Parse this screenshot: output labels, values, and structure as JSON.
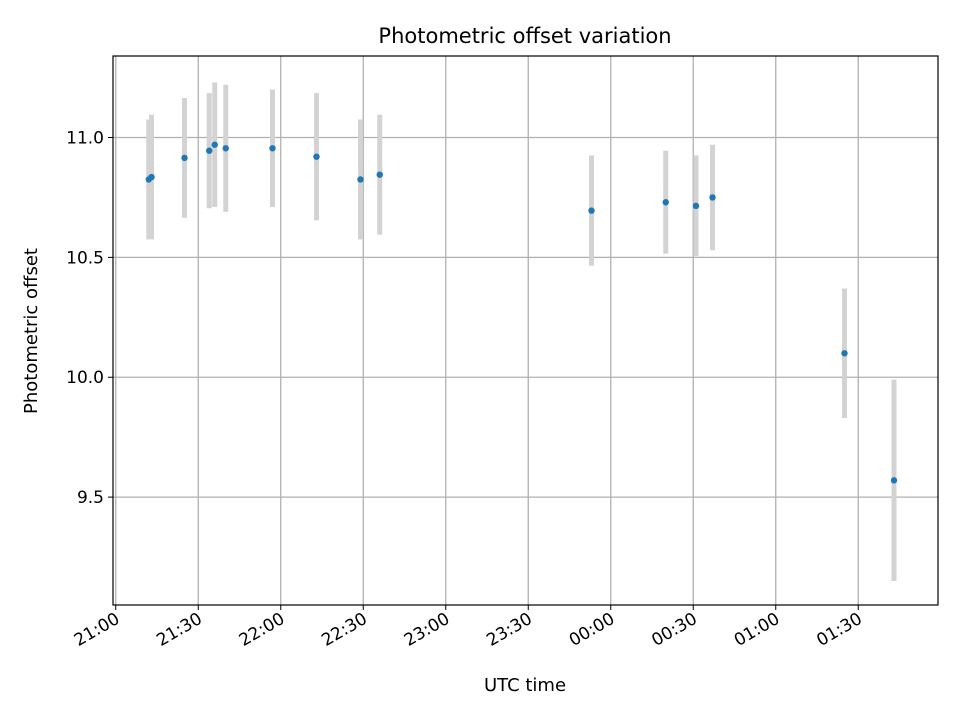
{
  "chart_data": {
    "type": "scatter",
    "title": "Photometric offset variation",
    "xlabel": "UTC time",
    "ylabel": "Photometric offset",
    "x_tick_labels": [
      "21:00",
      "21:30",
      "22:00",
      "22:30",
      "23:00",
      "23:30",
      "00:00",
      "00:30",
      "01:00",
      "01:30"
    ],
    "x_tick_times": [
      "21:00",
      "21:30",
      "22:00",
      "22:30",
      "23:00",
      "23:30",
      "00:00",
      "00:30",
      "01:00",
      "01:30"
    ],
    "xlim": [
      "20:59",
      "01:59"
    ],
    "y_tick_labels": [
      "9.5",
      "10.0",
      "10.5",
      "11.0"
    ],
    "y_tick_values": [
      9.5,
      10.0,
      10.5,
      11.0
    ],
    "ylim": [
      9.05,
      11.34
    ],
    "grid": true,
    "colors": {
      "points": "#1f77b4",
      "errorbars": "#d3d3d3",
      "grid": "#b0b0b0"
    },
    "points": [
      {
        "time": "21:12",
        "y": 10.825,
        "err": 0.25
      },
      {
        "time": "21:13",
        "y": 10.835,
        "err": 0.26
      },
      {
        "time": "21:25",
        "y": 10.915,
        "err": 0.25
      },
      {
        "time": "21:34",
        "y": 10.945,
        "err": 0.24
      },
      {
        "time": "21:36",
        "y": 10.97,
        "err": 0.26
      },
      {
        "time": "21:40",
        "y": 10.955,
        "err": 0.265
      },
      {
        "time": "21:57",
        "y": 10.955,
        "err": 0.245
      },
      {
        "time": "22:13",
        "y": 10.92,
        "err": 0.265
      },
      {
        "time": "22:29",
        "y": 10.825,
        "err": 0.25
      },
      {
        "time": "22:36",
        "y": 10.845,
        "err": 0.25
      },
      {
        "time": "23:53",
        "y": 10.695,
        "err": 0.23
      },
      {
        "time": "00:20",
        "y": 10.73,
        "err": 0.215
      },
      {
        "time": "00:31",
        "y": 10.715,
        "err": 0.21
      },
      {
        "time": "00:37",
        "y": 10.75,
        "err": 0.22
      },
      {
        "time": "01:25",
        "y": 10.1,
        "err": 0.27
      },
      {
        "time": "01:43",
        "y": 9.57,
        "err": 0.42
      }
    ]
  }
}
